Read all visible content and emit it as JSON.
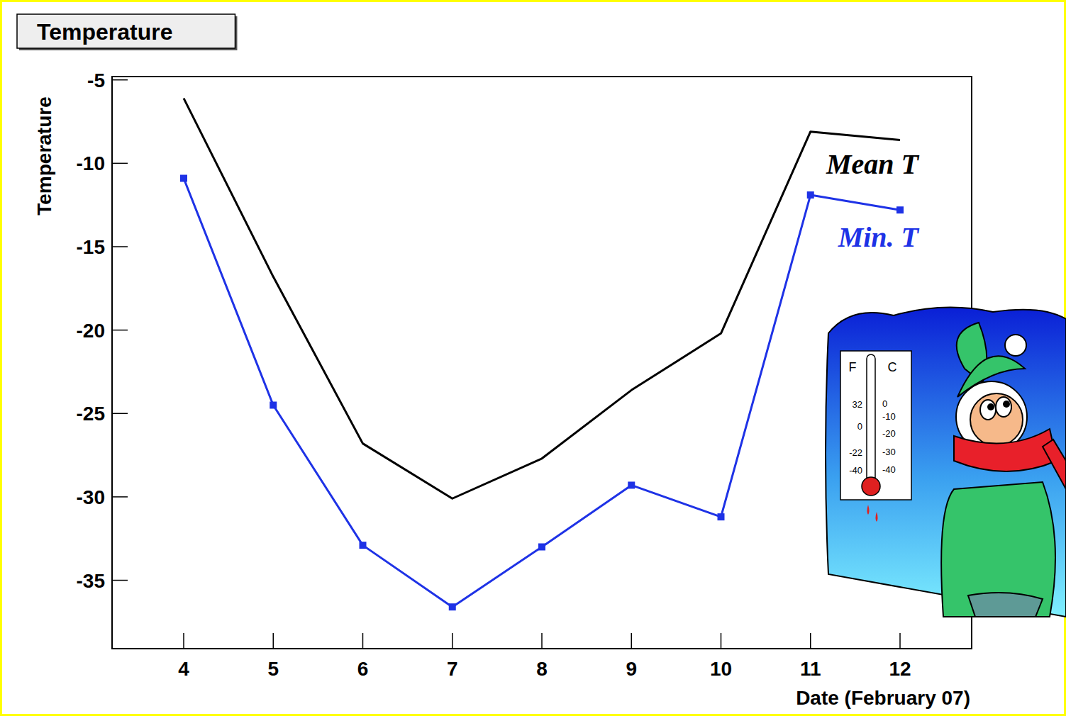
{
  "chart_data": {
    "type": "line",
    "title": "Temperature",
    "y_label": "Temperature",
    "x_label": "Date (February 07)",
    "x": [
      4,
      5,
      6,
      7,
      8,
      9,
      10,
      11,
      12
    ],
    "xlim": [
      3.2,
      12.8
    ],
    "xticks": [
      4,
      5,
      6,
      7,
      8,
      9,
      10,
      11,
      12
    ],
    "ylim": [
      -39.1,
      -4.8
    ],
    "yticks": [
      -35,
      -30,
      -25,
      -20,
      -15,
      -10,
      -5
    ],
    "grid": false,
    "series": [
      {
        "name": "Mean T",
        "color": "#000000",
        "marker": "none",
        "line_style": "solid",
        "values": [
          -6.1,
          -16.8,
          -26.8,
          -30.1,
          -27.7,
          -23.6,
          -20.2,
          -8.1,
          -8.6
        ]
      },
      {
        "name": "Min. T",
        "color": "#1e32e6",
        "marker": "square",
        "line_style": "solid",
        "values": [
          -10.9,
          -24.5,
          -32.9,
          -36.6,
          -33.0,
          -29.3,
          -31.2,
          -11.9,
          -12.8
        ]
      }
    ]
  },
  "illustration": {
    "scale_heads": [
      "F",
      "C"
    ],
    "fahrenheit": [
      "32",
      "0",
      "-22",
      "-40"
    ],
    "celsius": [
      "0",
      "-10",
      "-20",
      "-30",
      "-40"
    ]
  }
}
